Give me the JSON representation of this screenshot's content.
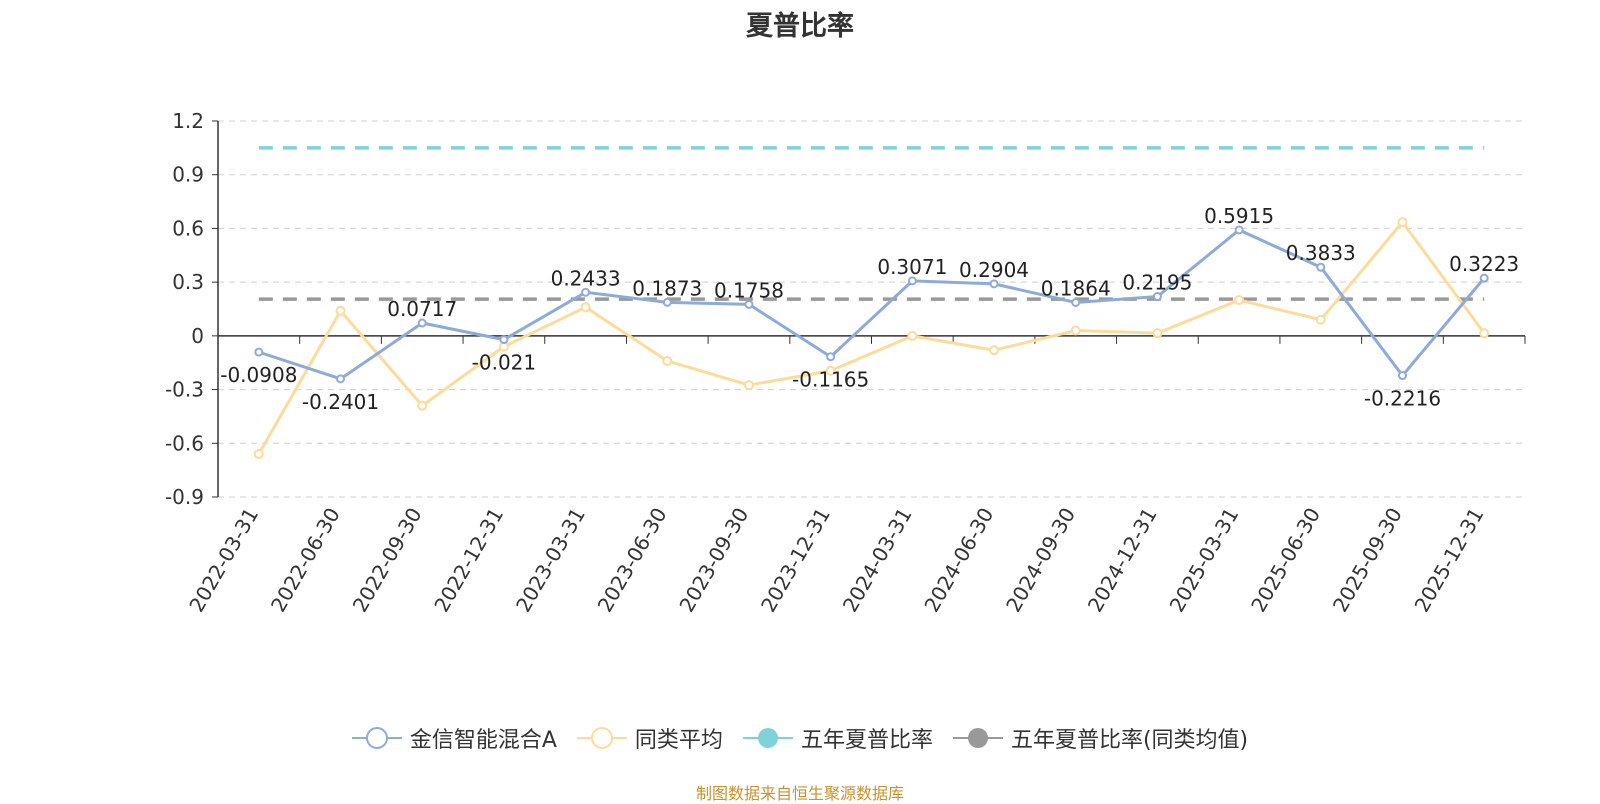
{
  "title": "夏普比率",
  "source_note": "制图数据来自恒生聚源数据库",
  "chart_data": {
    "type": "line",
    "title": "夏普比率",
    "categories": [
      "2022-03-31",
      "2022-06-30",
      "2022-09-30",
      "2022-12-31",
      "2023-03-31",
      "2023-06-30",
      "2023-09-30",
      "2023-12-31",
      "2024-03-31",
      "2024-06-30",
      "2024-09-30",
      "2024-12-31",
      "2025-03-31",
      "2025-06-30",
      "2025-09-30",
      "2025-12-31"
    ],
    "ylim": [
      -0.9,
      1.2
    ],
    "yticks": [
      -0.9,
      -0.6,
      -0.3,
      0,
      0.3,
      0.6,
      0.9,
      1.2
    ],
    "ytick_labels": [
      "-0.9",
      "-0.6",
      "-0.3",
      "0",
      "0.3",
      "0.6",
      "0.9",
      "1.2"
    ],
    "grid": true,
    "legend_position": "bottom",
    "series": [
      {
        "name": "金信智能混合A",
        "color": "#8eaad8",
        "values": [
          -0.0908,
          -0.2401,
          0.0717,
          -0.021,
          0.2433,
          0.1873,
          0.1758,
          -0.1165,
          0.3071,
          0.2904,
          0.1864,
          0.2195,
          0.5915,
          0.3833,
          -0.2216,
          0.3223
        ],
        "labels": [
          "-0.0908",
          "-0.2401",
          "0.0717",
          "-0.021",
          "0.2433",
          "0.1873",
          "0.1758",
          "-0.1165",
          "0.3071",
          "0.2904",
          "0.1864",
          "0.2195",
          "0.5915",
          "0.3833",
          "-0.2216",
          "0.3223"
        ]
      },
      {
        "name": "同类平均",
        "color": "#fcdc9b",
        "values": [
          -0.66,
          0.14,
          -0.39,
          -0.06,
          0.16,
          -0.14,
          -0.275,
          -0.195,
          0.0,
          -0.08,
          0.03,
          0.015,
          0.2,
          0.09,
          0.635,
          0.015
        ]
      },
      {
        "name": "五年夏普比率",
        "color": "#7fd3d8",
        "values": [
          1.05,
          1.05,
          1.05,
          1.05,
          1.05,
          1.05,
          1.05,
          1.05,
          1.05,
          1.05,
          1.05,
          1.05,
          1.05,
          1.05,
          1.05,
          1.05
        ]
      },
      {
        "name": "五年夏普比率(同类均值)",
        "color": "#999999",
        "values": [
          0.205,
          0.205,
          0.205,
          0.205,
          0.205,
          0.205,
          0.205,
          0.205,
          0.205,
          0.205,
          0.205,
          0.205,
          0.205,
          0.205,
          0.205,
          0.205
        ]
      }
    ]
  }
}
